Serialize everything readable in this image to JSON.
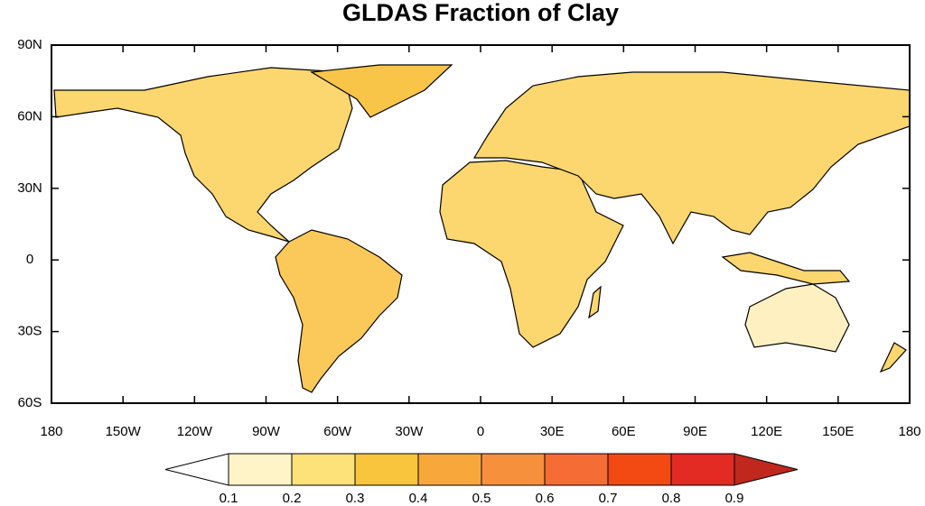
{
  "map": {
    "title": "GLDAS Fraction of Clay",
    "lon_ticks": [
      {
        "value": -180,
        "label": "180"
      },
      {
        "value": -150,
        "label": "150W"
      },
      {
        "value": -120,
        "label": "120W"
      },
      {
        "value": -90,
        "label": "90W"
      },
      {
        "value": -60,
        "label": "60W"
      },
      {
        "value": -30,
        "label": "30W"
      },
      0,
      {
        "value": 30,
        "label": "30E"
      },
      {
        "value": 60,
        "label": "60E"
      },
      {
        "value": 90,
        "label": "90E"
      },
      {
        "value": 120,
        "label": "120E"
      },
      {
        "value": 150,
        "label": "150E"
      },
      {
        "value": 180,
        "label": "180"
      }
    ],
    "lat_ticks": [
      {
        "value": 90,
        "label": "90N"
      },
      {
        "value": 60,
        "label": "60N"
      },
      {
        "value": 30,
        "label": "30N"
      },
      0,
      {
        "value": -30,
        "label": "30S"
      },
      {
        "value": -60,
        "label": "60S"
      }
    ],
    "lonlim": [
      -180,
      180
    ],
    "latlim": [
      -60,
      90
    ],
    "colorbar": {
      "levels": [
        0.1,
        0.2,
        0.3,
        0.4,
        0.5,
        0.6,
        0.7,
        0.8,
        0.9
      ],
      "colors": [
        "#ffffff",
        "#fff3c8",
        "#fde27a",
        "#f9c53c",
        "#f8a83b",
        "#f7903d",
        "#f56c34",
        "#f24a12",
        "#e32b24",
        "#c0281d"
      ]
    }
  }
}
